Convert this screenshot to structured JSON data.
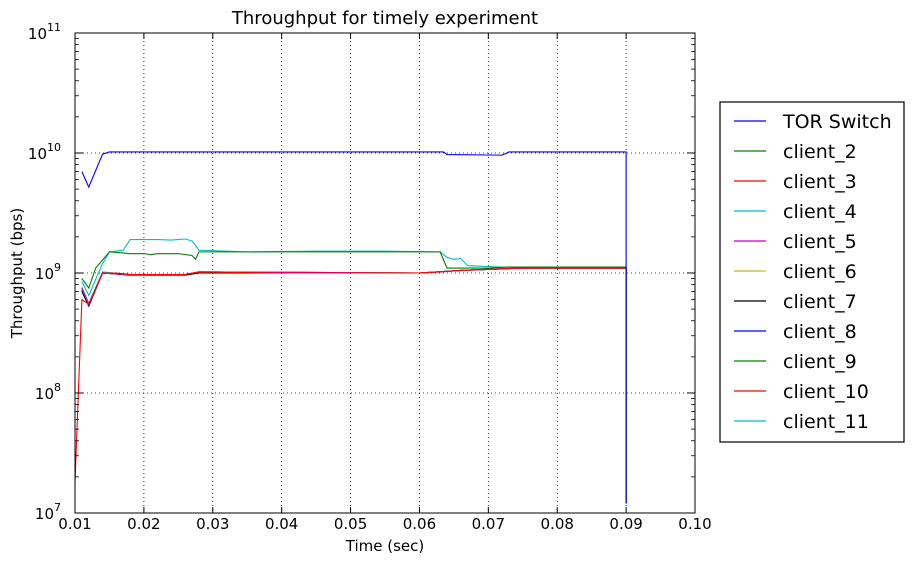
{
  "chart_data": {
    "type": "line",
    "title": "Throughput for timely experiment",
    "xlabel": "Time (sec)",
    "ylabel": "Throughput (bps)",
    "xlim": [
      0.01,
      0.1
    ],
    "ylim": [
      10000000,
      100000000000
    ],
    "yscale": "log",
    "grid": true,
    "legend_position": "right, outside plot",
    "x_ticks": [
      0.01,
      0.02,
      0.03,
      0.04,
      0.05,
      0.06,
      0.07,
      0.08,
      0.09,
      0.1
    ],
    "x_tick_labels": [
      "0.01",
      "0.02",
      "0.03",
      "0.04",
      "0.05",
      "0.06",
      "0.07",
      "0.08",
      "0.09",
      "0.10"
    ],
    "y_ticks": [
      {
        "base": "10",
        "exp": "7",
        "value": 10000000
      },
      {
        "base": "10",
        "exp": "8",
        "value": 100000000
      },
      {
        "base": "10",
        "exp": "9",
        "value": 1000000000
      },
      {
        "base": "10",
        "exp": "10",
        "value": 10000000000
      },
      {
        "base": "10",
        "exp": "11",
        "value": 100000000000
      }
    ],
    "series": [
      {
        "name": "TOR Switch",
        "color": "#0000ff",
        "points": [
          [
            0.011,
            7000000000.0
          ],
          [
            0.012,
            5200000000.0
          ],
          [
            0.014,
            9800000000.0
          ],
          [
            0.015,
            10200000000.0
          ],
          [
            0.03,
            10200000000.0
          ],
          [
            0.05,
            10200000000.0
          ],
          [
            0.0635,
            10200000000.0
          ],
          [
            0.064,
            9700000000.0
          ],
          [
            0.072,
            9600000000.0
          ],
          [
            0.073,
            10200000000.0
          ],
          [
            0.09,
            10200000000.0
          ],
          [
            0.09,
            12000000.0
          ]
        ]
      },
      {
        "name": "client_2",
        "color": "#008000",
        "points": [
          [
            0.011,
            900000000.0
          ],
          [
            0.012,
            750000000.0
          ],
          [
            0.013,
            1100000000.0
          ],
          [
            0.015,
            1500000000.0
          ],
          [
            0.018,
            1450000000.0
          ],
          [
            0.02,
            1450000000.0
          ],
          [
            0.021,
            1420000000.0
          ],
          [
            0.022,
            1450000000.0
          ],
          [
            0.025,
            1450000000.0
          ],
          [
            0.027,
            1400000000.0
          ],
          [
            0.0275,
            1300000000.0
          ],
          [
            0.028,
            1500000000.0
          ],
          [
            0.035,
            1500000000.0
          ],
          [
            0.045,
            1500000000.0
          ],
          [
            0.055,
            1500000000.0
          ],
          [
            0.063,
            1500000000.0
          ],
          [
            0.064,
            1100000000.0
          ],
          [
            0.066,
            1100000000.0
          ],
          [
            0.07,
            1100000000.0
          ],
          [
            0.073,
            1120000000.0
          ],
          [
            0.08,
            1120000000.0
          ],
          [
            0.09,
            1120000000.0
          ],
          [
            0.09,
            12000000.0
          ]
        ]
      },
      {
        "name": "client_3",
        "color": "#ff0000",
        "points": [
          [
            0.01,
            18000000.0
          ],
          [
            0.011,
            600000000.0
          ],
          [
            0.012,
            550000000.0
          ],
          [
            0.014,
            1000000000.0
          ],
          [
            0.016,
            1000000000.0
          ],
          [
            0.018,
            970000000.0
          ],
          [
            0.026,
            970000000.0
          ],
          [
            0.028,
            1020000000.0
          ],
          [
            0.04,
            1000000000.0
          ],
          [
            0.06,
            1000000000.0
          ],
          [
            0.063,
            1020000000.0
          ],
          [
            0.066,
            1050000000.0
          ],
          [
            0.07,
            1080000000.0
          ],
          [
            0.075,
            1100000000.0
          ],
          [
            0.09,
            1100000000.0
          ],
          [
            0.09,
            12000000.0
          ]
        ]
      },
      {
        "name": "client_4",
        "color": "#00bfbf",
        "points": [
          [
            0.011,
            850000000.0
          ],
          [
            0.012,
            650000000.0
          ],
          [
            0.014,
            1200000000.0
          ],
          [
            0.015,
            1500000000.0
          ],
          [
            0.017,
            1550000000.0
          ],
          [
            0.018,
            1900000000.0
          ],
          [
            0.022,
            1900000000.0
          ],
          [
            0.024,
            1880000000.0
          ],
          [
            0.026,
            1920000000.0
          ],
          [
            0.027,
            1850000000.0
          ],
          [
            0.028,
            1550000000.0
          ],
          [
            0.035,
            1500000000.0
          ],
          [
            0.045,
            1520000000.0
          ],
          [
            0.055,
            1520000000.0
          ],
          [
            0.063,
            1500000000.0
          ],
          [
            0.064,
            1350000000.0
          ],
          [
            0.065,
            1300000000.0
          ],
          [
            0.066,
            1320000000.0
          ],
          [
            0.067,
            1150000000.0
          ],
          [
            0.072,
            1120000000.0
          ],
          [
            0.08,
            1120000000.0
          ],
          [
            0.09,
            1120000000.0
          ],
          [
            0.09,
            12000000.0
          ]
        ]
      },
      {
        "name": "client_5",
        "color": "#bf00bf",
        "points": [
          [
            0.011,
            750000000.0
          ],
          [
            0.012,
            550000000.0
          ],
          [
            0.014,
            1000000000.0
          ],
          [
            0.018,
            970000000.0
          ],
          [
            0.026,
            970000000.0
          ],
          [
            0.028,
            1020000000.0
          ],
          [
            0.06,
            1000000000.0
          ],
          [
            0.066,
            1050000000.0
          ],
          [
            0.075,
            1100000000.0
          ],
          [
            0.09,
            1100000000.0
          ],
          [
            0.09,
            12000000.0
          ]
        ]
      },
      {
        "name": "client_6",
        "color": "#bfbf00",
        "points": [
          [
            0.011,
            740000000.0
          ],
          [
            0.012,
            550000000.0
          ],
          [
            0.014,
            1000000000.0
          ],
          [
            0.018,
            970000000.0
          ],
          [
            0.026,
            970000000.0
          ],
          [
            0.028,
            1020000000.0
          ],
          [
            0.06,
            1000000000.0
          ],
          [
            0.066,
            1050000000.0
          ],
          [
            0.075,
            1100000000.0
          ],
          [
            0.09,
            1100000000.0
          ],
          [
            0.09,
            12000000.0
          ]
        ]
      },
      {
        "name": "client_7",
        "color": "#000000",
        "points": [
          [
            0.011,
            720000000.0
          ],
          [
            0.012,
            540000000.0
          ],
          [
            0.014,
            1000000000.0
          ],
          [
            0.018,
            960000000.0
          ],
          [
            0.026,
            960000000.0
          ],
          [
            0.028,
            1000000000.0
          ],
          [
            0.06,
            1000000000.0
          ],
          [
            0.066,
            1050000000.0
          ],
          [
            0.075,
            1100000000.0
          ],
          [
            0.09,
            1100000000.0
          ],
          [
            0.09,
            12000000.0
          ]
        ]
      },
      {
        "name": "client_8",
        "color": "#0000ff",
        "points": [
          [
            0.011,
            700000000.0
          ],
          [
            0.012,
            530000000.0
          ],
          [
            0.014,
            1000000000.0
          ],
          [
            0.018,
            960000000.0
          ],
          [
            0.026,
            960000000.0
          ],
          [
            0.028,
            1000000000.0
          ],
          [
            0.06,
            1000000000.0
          ],
          [
            0.066,
            1050000000.0
          ],
          [
            0.075,
            1100000000.0
          ],
          [
            0.09,
            1100000000.0
          ],
          [
            0.09,
            12000000.0
          ]
        ]
      },
      {
        "name": "client_9",
        "color": "#008000",
        "points": [
          [
            0.011,
            730000000.0
          ],
          [
            0.012,
            550000000.0
          ],
          [
            0.014,
            1000000000.0
          ],
          [
            0.018,
            970000000.0
          ],
          [
            0.026,
            970000000.0
          ],
          [
            0.028,
            1020000000.0
          ],
          [
            0.06,
            1000000000.0
          ],
          [
            0.066,
            1050000000.0
          ],
          [
            0.075,
            1100000000.0
          ],
          [
            0.09,
            1100000000.0
          ],
          [
            0.09,
            12000000.0
          ]
        ]
      },
      {
        "name": "client_10",
        "color": "#ff0000",
        "points": [
          [
            0.011,
            710000000.0
          ],
          [
            0.012,
            540000000.0
          ],
          [
            0.014,
            1000000000.0
          ],
          [
            0.018,
            970000000.0
          ],
          [
            0.026,
            970000000.0
          ],
          [
            0.028,
            1020000000.0
          ],
          [
            0.06,
            1000000000.0
          ],
          [
            0.066,
            1050000000.0
          ],
          [
            0.075,
            1100000000.0
          ],
          [
            0.09,
            1100000000.0
          ],
          [
            0.09,
            12000000.0
          ]
        ]
      },
      {
        "name": "client_11",
        "color": "#00bfbf",
        "points": [
          [
            0.011,
            760000000.0
          ],
          [
            0.012,
            560000000.0
          ],
          [
            0.014,
            1020000000.0
          ],
          [
            0.018,
            970000000.0
          ],
          [
            0.026,
            970000000.0
          ],
          [
            0.028,
            1020000000.0
          ],
          [
            0.06,
            1000000000.0
          ],
          [
            0.066,
            1050000000.0
          ],
          [
            0.075,
            1100000000.0
          ],
          [
            0.09,
            1100000000.0
          ],
          [
            0.09,
            12000000.0
          ]
        ]
      }
    ]
  }
}
